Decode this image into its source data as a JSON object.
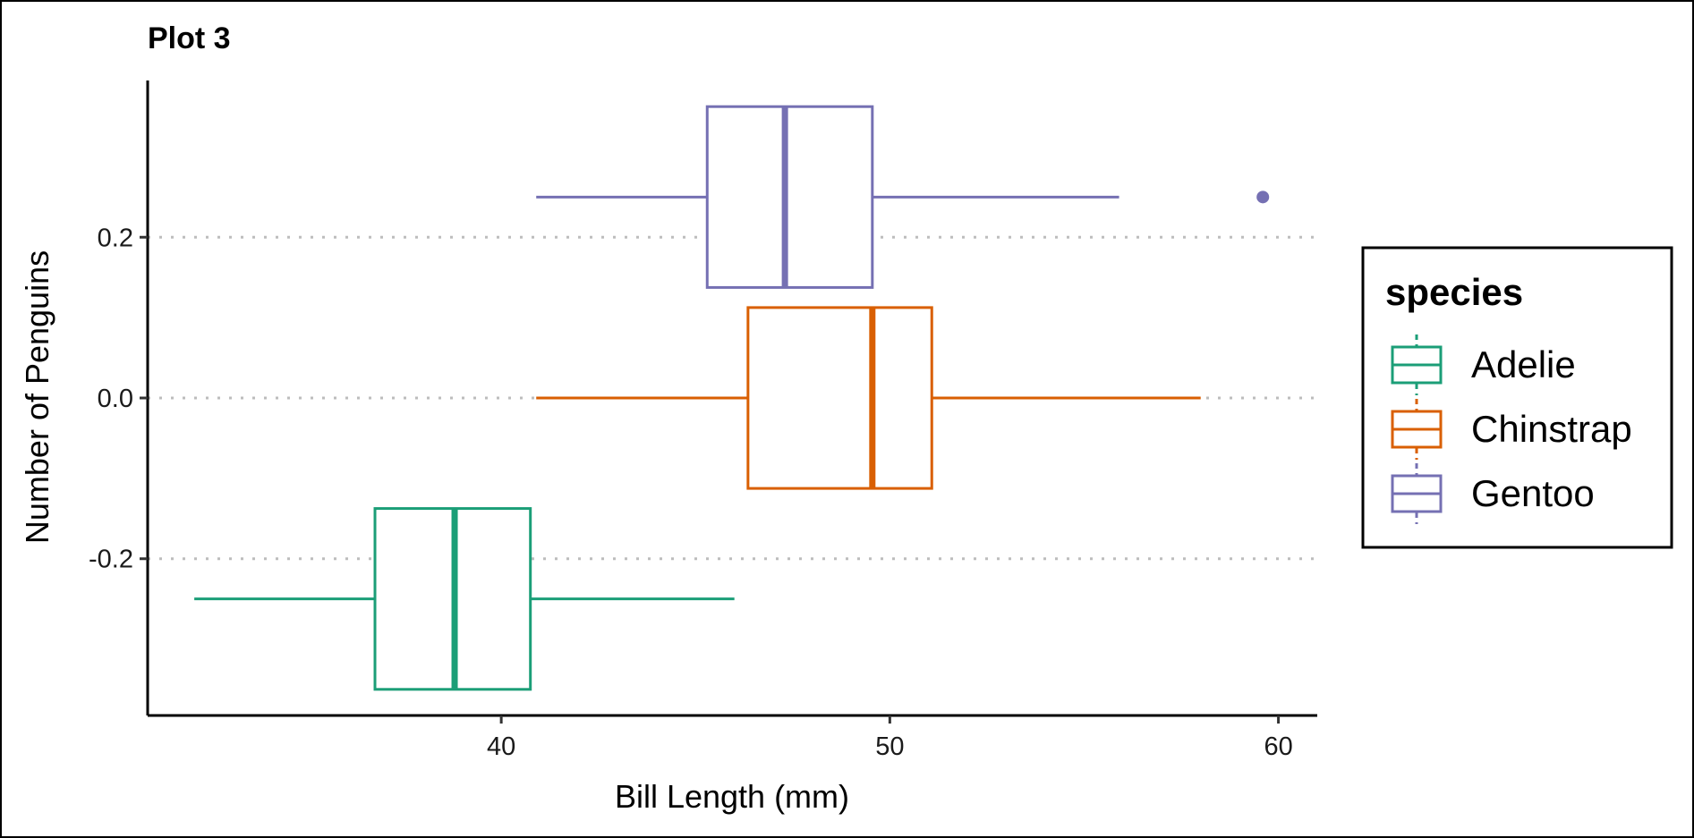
{
  "chart_data": {
    "type": "boxplot",
    "orientation": "horizontal",
    "title": "Plot 3",
    "xlabel": "Bill Length (mm)",
    "ylabel": "Number of Penguins",
    "xlim": [
      30.9,
      61
    ],
    "ylim": [
      -0.395,
      0.395
    ],
    "x_ticks": [
      40,
      50,
      60
    ],
    "y_ticks": [
      0.2,
      0.0,
      -0.2
    ],
    "y_tick_labels": [
      "0.2",
      "0.0",
      "-0.2"
    ],
    "grid": "dotted horizontal at y ticks",
    "legend": {
      "title": "species",
      "position": "right"
    },
    "series": [
      {
        "name": "Adelie",
        "color": "#1b9e77",
        "center": -0.25,
        "half_height": 0.1125,
        "whisker_low": 32.1,
        "q1": 36.75,
        "median": 38.8,
        "q3": 40.75,
        "whisker_high": 46.0,
        "outliers": []
      },
      {
        "name": "Chinstrap",
        "color": "#d95f02",
        "center": 0.0,
        "half_height": 0.1125,
        "whisker_low": 40.9,
        "q1": 46.35,
        "median": 49.55,
        "q3": 51.08,
        "whisker_high": 58.0,
        "outliers": []
      },
      {
        "name": "Gentoo",
        "color": "#7570b3",
        "center": 0.25,
        "half_height": 0.1125,
        "whisker_low": 40.9,
        "q1": 45.3,
        "median": 47.3,
        "q3": 49.55,
        "whisker_high": 55.9,
        "outliers": [
          59.6
        ]
      }
    ]
  }
}
